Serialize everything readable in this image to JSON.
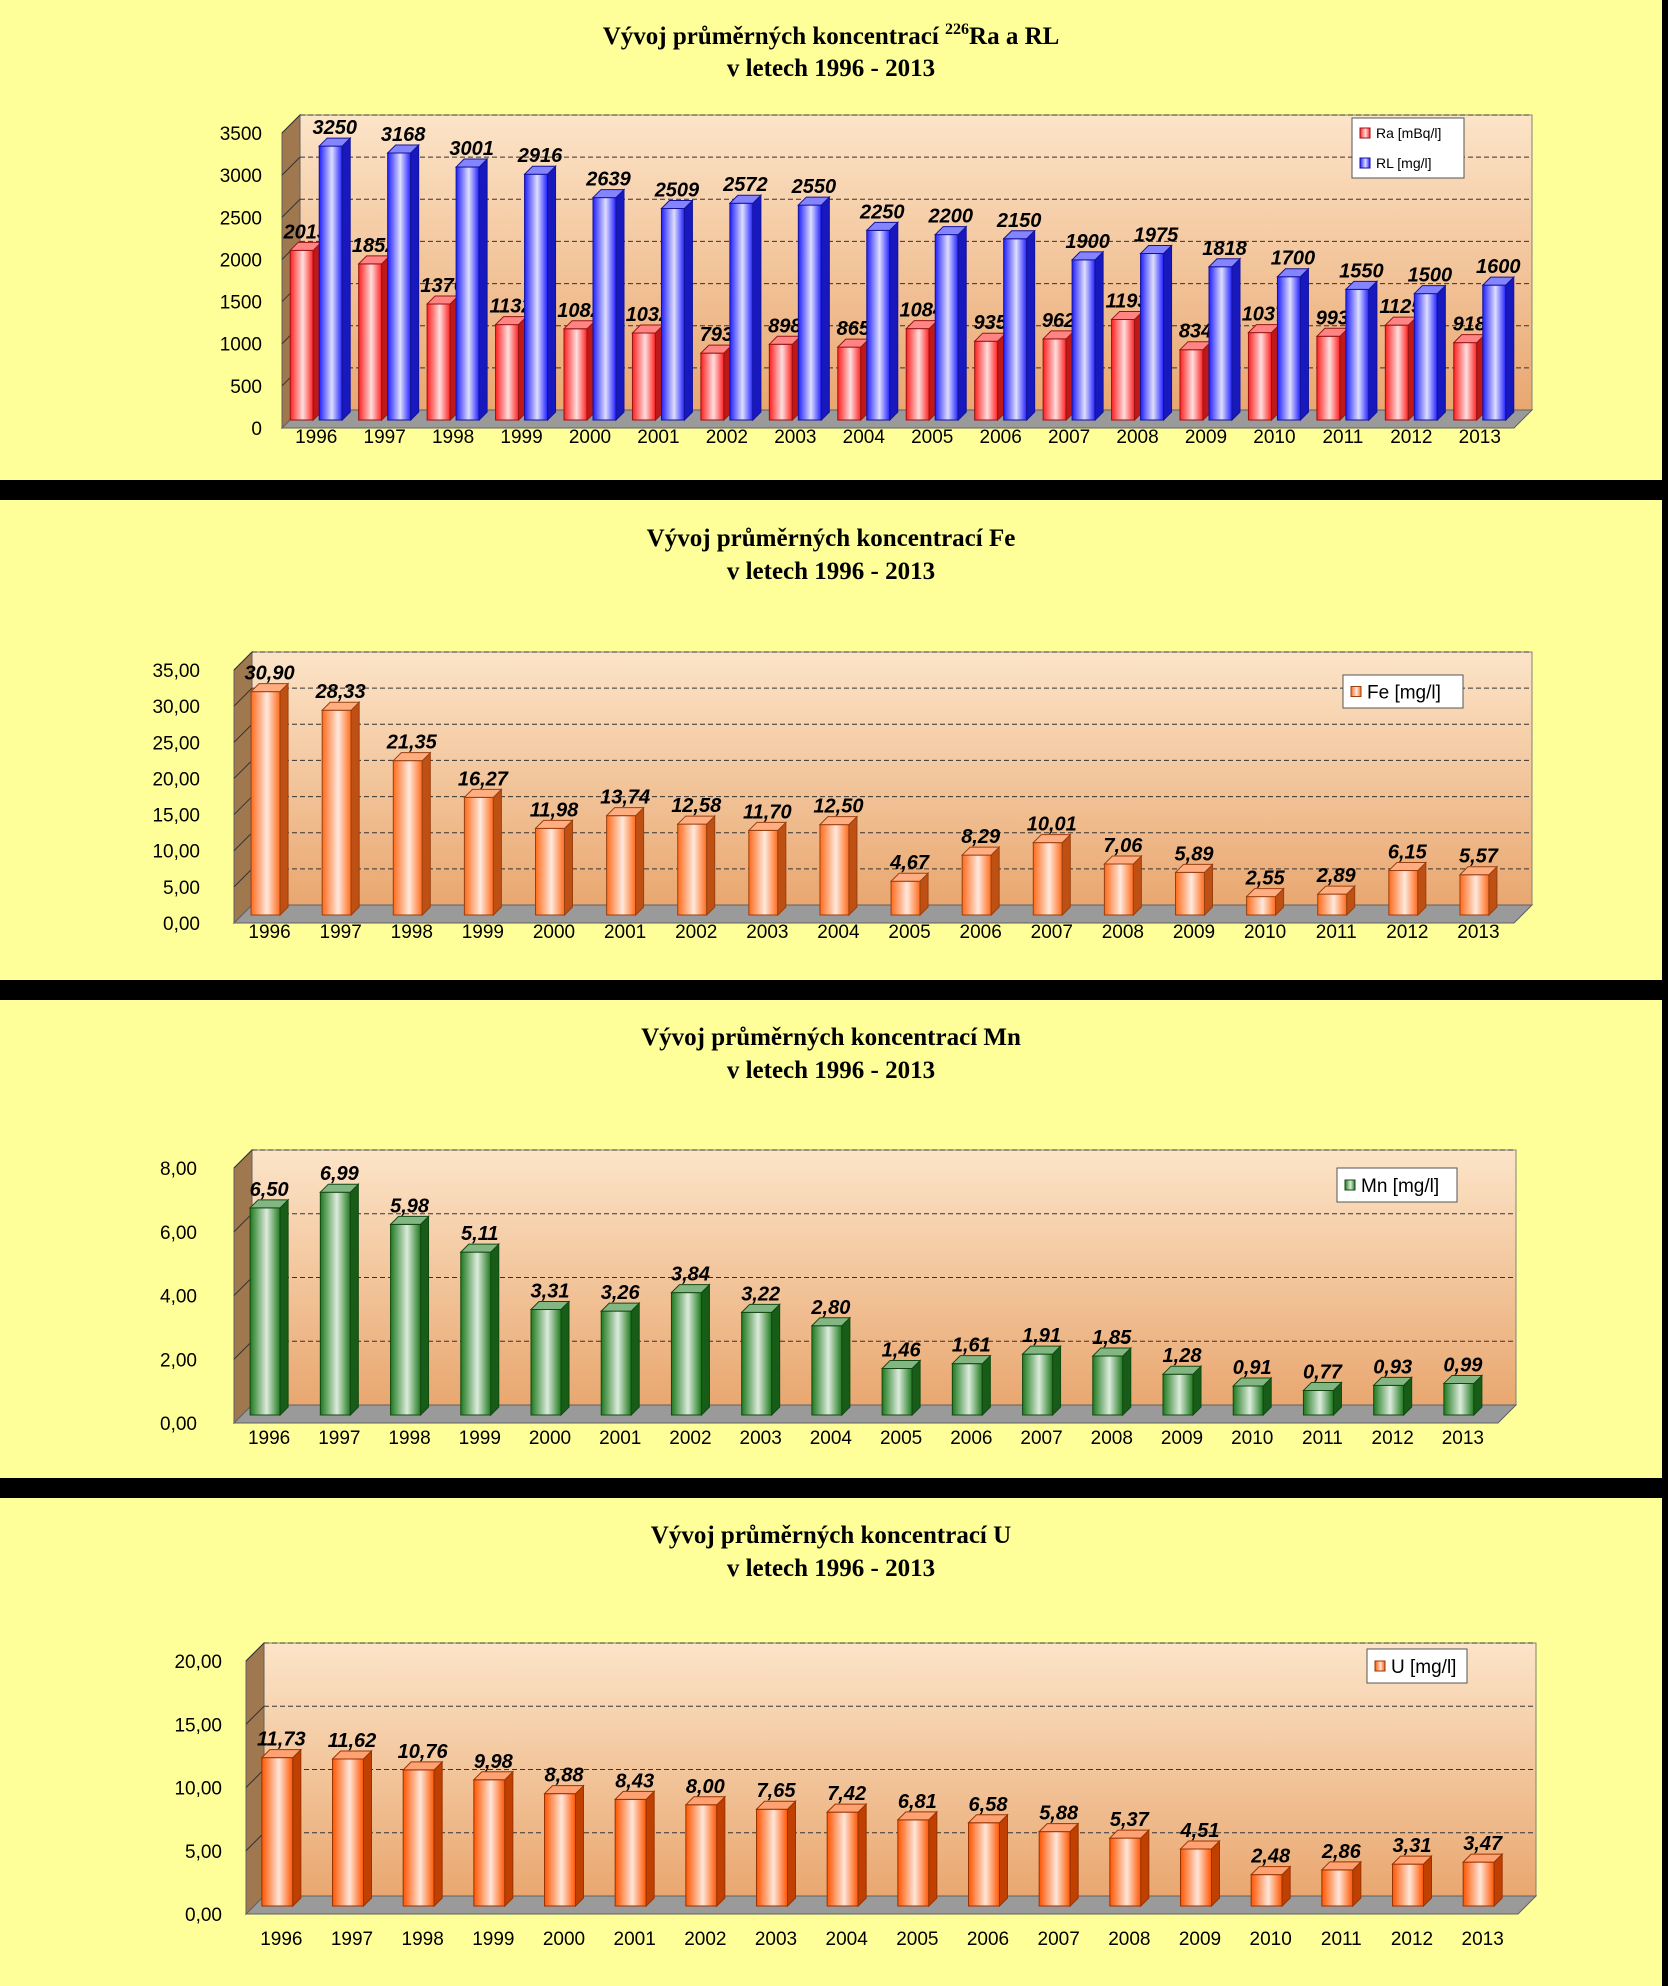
{
  "colors": {
    "page_background": "#000000",
    "panel_background": "#ffff99",
    "plot_top": "#fce4c8",
    "plot_bottom": "#e9a770",
    "wall_side": "#a07850",
    "floor": "#9a9a9a",
    "ra": "#ff2020",
    "rl": "#2020ff",
    "fe": "#ff6a1a",
    "mn": "#1e7a1e",
    "u": "#ff5500"
  },
  "charts": [
    {
      "chart_data": {
        "type": "bar",
        "title_line1": "Vývoj průměrných koncentrací ",
        "title_sup": "226",
        "title_line1_end": "Ra a RL",
        "title_line2": "v letech 1996 - 2013",
        "categories": [
          "1996",
          "1997",
          "1998",
          "1999",
          "2000",
          "2001",
          "2002",
          "2003",
          "2004",
          "2005",
          "2006",
          "2007",
          "2008",
          "2009",
          "2010",
          "2011",
          "2012",
          "2013"
        ],
        "ylim": [
          0,
          3500
        ],
        "yticks": [
          "0",
          "500",
          "1000",
          "1500",
          "2000",
          "2500",
          "3000",
          "3500"
        ],
        "series": [
          {
            "name": "Ra [mBq/l]",
            "color_key": "ra",
            "values": [
              2013,
              1852,
              1376,
              1132,
              1082,
              1032,
              793,
              898,
              865,
              1084,
              935,
              962,
              1193,
              834,
              1037,
              993,
              1125,
              918
            ],
            "labels": [
              "2013",
              "1852",
              "1376",
              "1132",
              "1082",
              "1032",
              "793",
              "898",
              "865",
              "1084",
              "935",
              "962",
              "1193",
              "834",
              "1037",
              "993",
              "1125",
              "918"
            ]
          },
          {
            "name": "RL [mg/l]",
            "color_key": "rl",
            "values": [
              3250,
              3168,
              3001,
              2916,
              2639,
              2509,
              2572,
              2550,
              2250,
              2200,
              2150,
              1900,
              1975,
              1818,
              1700,
              1550,
              1500,
              1600
            ],
            "labels": [
              "3250",
              "3168",
              "3001",
              "2916",
              "2639",
              "2509",
              "2572",
              "2550",
              "2250",
              "2200",
              "2150",
              "1900",
              "1975",
              "1818",
              "1700",
              "1550",
              "1500",
              "1600"
            ]
          }
        ],
        "grid": true,
        "legend": "top-right"
      }
    },
    {
      "chart_data": {
        "type": "bar",
        "title_line1": "Vývoj průměrných koncentrací Fe",
        "title_line2": "v letech 1996 - 2013",
        "categories": [
          "1996",
          "1997",
          "1998",
          "1999",
          "2000",
          "2001",
          "2002",
          "2003",
          "2004",
          "2005",
          "2006",
          "2007",
          "2008",
          "2009",
          "2010",
          "2011",
          "2012",
          "2013"
        ],
        "ylim": [
          0,
          35
        ],
        "yticks": [
          "0,00",
          "5,00",
          "10,00",
          "15,00",
          "20,00",
          "25,00",
          "30,00",
          "35,00"
        ],
        "series": [
          {
            "name": "Fe [mg/l]",
            "color_key": "fe",
            "values": [
              30.9,
              28.33,
              21.35,
              16.27,
              11.98,
              13.74,
              12.58,
              11.7,
              12.5,
              4.67,
              8.29,
              10.01,
              7.06,
              5.89,
              2.55,
              2.89,
              6.15,
              5.57
            ],
            "labels": [
              "30,90",
              "28,33",
              "21,35",
              "16,27",
              "11,98",
              "13,74",
              "12,58",
              "11,70",
              "12,50",
              "4,67",
              "8,29",
              "10,01",
              "7,06",
              "5,89",
              "2,55",
              "2,89",
              "6,15",
              "5,57"
            ]
          }
        ],
        "grid": true,
        "legend": "top-right"
      }
    },
    {
      "chart_data": {
        "type": "bar",
        "title_line1": "Vývoj průměrných koncentrací Mn",
        "title_line2": "v letech 1996 - 2013",
        "categories": [
          "1996",
          "1997",
          "1998",
          "1999",
          "2000",
          "2001",
          "2002",
          "2003",
          "2004",
          "2005",
          "2006",
          "2007",
          "2008",
          "2009",
          "2010",
          "2011",
          "2012",
          "2013"
        ],
        "ylim": [
          0,
          8
        ],
        "yticks": [
          "0,00",
          "2,00",
          "4,00",
          "6,00",
          "8,00"
        ],
        "series": [
          {
            "name": "Mn [mg/l]",
            "color_key": "mn",
            "values": [
              6.5,
              6.99,
              5.98,
              5.11,
              3.31,
              3.26,
              3.84,
              3.22,
              2.8,
              1.46,
              1.61,
              1.91,
              1.85,
              1.28,
              0.91,
              0.77,
              0.93,
              0.99
            ],
            "labels": [
              "6,50",
              "6,99",
              "5,98",
              "5,11",
              "3,31",
              "3,26",
              "3,84",
              "3,22",
              "2,80",
              "1,46",
              "1,61",
              "1,91",
              "1,85",
              "1,28",
              "0,91",
              "0,77",
              "0,93",
              "0,99"
            ]
          }
        ],
        "grid": true,
        "legend": "top-right"
      }
    },
    {
      "chart_data": {
        "type": "bar",
        "title_line1": "Vývoj průměrných koncentrací U",
        "title_line2": "v letech 1996 - 2013",
        "categories": [
          "1996",
          "1997",
          "1998",
          "1999",
          "2000",
          "2001",
          "2002",
          "2003",
          "2004",
          "2005",
          "2006",
          "2007",
          "2008",
          "2009",
          "2010",
          "2011",
          "2012",
          "2013"
        ],
        "ylim": [
          0,
          20
        ],
        "yticks": [
          "0,00",
          "5,00",
          "10,00",
          "15,00",
          "20,00"
        ],
        "series": [
          {
            "name": "U [mg/l]",
            "color_key": "u",
            "values": [
              11.73,
              11.62,
              10.76,
              9.98,
              8.88,
              8.43,
              8.0,
              7.65,
              7.42,
              6.81,
              6.58,
              5.88,
              5.37,
              4.51,
              2.48,
              2.86,
              3.31,
              3.47
            ],
            "labels": [
              "11,73",
              "11,62",
              "10,76",
              "9,98",
              "8,88",
              "8,43",
              "8,00",
              "7,65",
              "7,42",
              "6,81",
              "6,58",
              "5,88",
              "5,37",
              "4,51",
              "2,48",
              "2,86",
              "3,31",
              "3,47"
            ]
          }
        ],
        "grid": true,
        "legend": "top-right"
      }
    }
  ]
}
